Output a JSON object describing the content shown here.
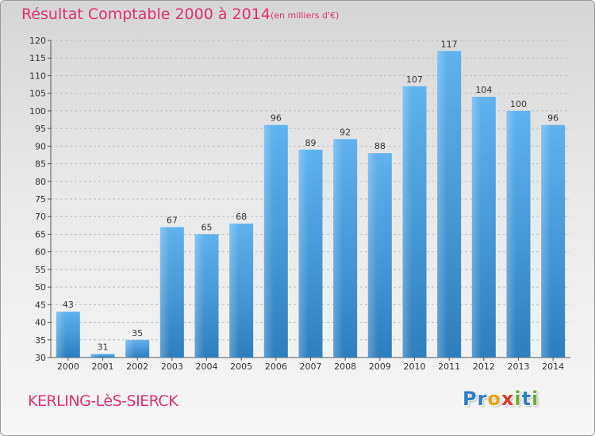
{
  "header": {
    "title": "Résultat Comptable 2000 à 2014",
    "unit": "(en milliers d'€)"
  },
  "footer": {
    "town": "KERLING-LèS-SIERCK",
    "logo_letters": [
      {
        "char": "P",
        "color": "#2f7fc4"
      },
      {
        "char": "r",
        "color": "#2f7fc4"
      },
      {
        "char": "o",
        "color": "#e8a21b"
      },
      {
        "char": "x",
        "color": "#d93a2f"
      },
      {
        "char": "i",
        "color": "#6cae3a"
      },
      {
        "char": "t",
        "color": "#2f7fc4"
      },
      {
        "char": "i",
        "color": "#6cae3a"
      }
    ]
  },
  "colors": {
    "accent": "#e0306e",
    "bar_light": "#5fb1ec",
    "bar_dark": "#2e7fbf"
  },
  "chart_data": {
    "type": "bar",
    "categories": [
      "2000",
      "2001",
      "2002",
      "2003",
      "2004",
      "2005",
      "2006",
      "2007",
      "2008",
      "2009",
      "2010",
      "2011",
      "2012",
      "2013",
      "2014"
    ],
    "values": [
      43,
      31,
      35,
      67,
      65,
      68,
      96,
      89,
      92,
      88,
      107,
      117,
      104,
      100,
      96
    ],
    "ylim": [
      30,
      120
    ],
    "yticks": [
      30,
      35,
      40,
      45,
      50,
      55,
      60,
      65,
      70,
      75,
      80,
      85,
      90,
      95,
      100,
      105,
      110,
      115,
      120
    ],
    "grid": true,
    "legend": "none"
  }
}
